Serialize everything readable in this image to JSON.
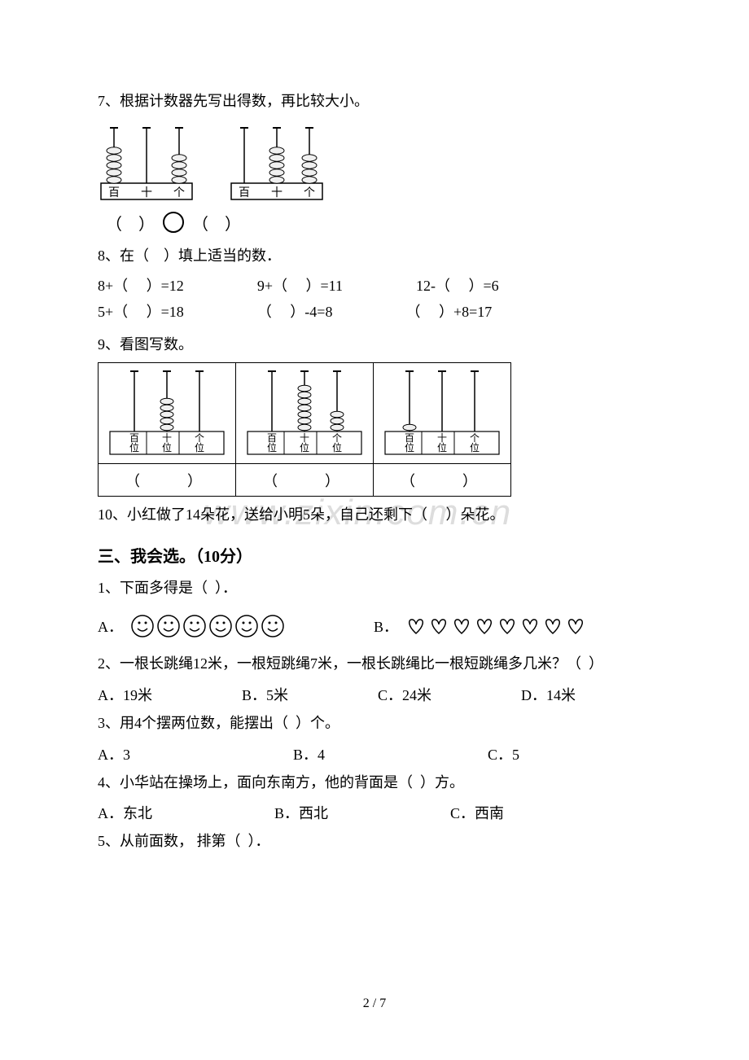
{
  "q7": {
    "text": "7、根据计数器先写出得数，再比较大小。",
    "abacus1": {
      "labels": [
        "百",
        "十",
        "个"
      ],
      "beads": [
        5,
        0,
        4
      ]
    },
    "abacus2": {
      "labels": [
        "百",
        "十",
        "个"
      ],
      "beads": [
        0,
        5,
        4
      ]
    },
    "paren": "（    ）",
    "paren2": "（    ）"
  },
  "q8": {
    "text": "8、在（    ）填上适当的数．",
    "eq1": "8+（     ）=12",
    "eq2": "9+（     ）=11",
    "eq3": "12-（     ）=6",
    "eq4": "5+（     ）=18",
    "eq5": "（     ）-4=8",
    "eq6": "（     ）+8=17"
  },
  "q9": {
    "text": "9、看图写数。",
    "col_labels": [
      "百位",
      "十位",
      "个位"
    ],
    "abacus": [
      {
        "beads": [
          0,
          5,
          0
        ]
      },
      {
        "beads": [
          0,
          7,
          3
        ]
      },
      {
        "beads": [
          1,
          0,
          0
        ]
      }
    ],
    "answer": "（    ）"
  },
  "q10": {
    "text": "10、小红做了14朵花，送给小明5朵，自己还剩下（     ）朵花。"
  },
  "section3": {
    "title": "三、我会选。（10分）"
  },
  "s3q1": {
    "text": "1、下面多得是（  ）．",
    "optA_label": "A．",
    "optA_count": 6,
    "optB_label": "B．",
    "optB_count": 8
  },
  "s3q2": {
    "text": "2、一根长跳绳12米，一根短跳绳7米，一根长跳绳比一根短跳绳多几米？（  ）",
    "optA": "A．19米",
    "optB": "B．5米",
    "optC": "C．24米",
    "optD": "D．14米"
  },
  "s3q3": {
    "text": "3、用4个摆两位数，能摆出（  ）个。",
    "optA": "A．3",
    "optB": "B．4",
    "optC": "C．5"
  },
  "s3q4": {
    "text": "4、小华站在操场上，面向东南方，他的背面是（  ）方。",
    "optA": "A．东北",
    "optB": "B．西北",
    "optC": "C．西南"
  },
  "s3q5": {
    "text": "5、从前面数， 排第（  ）．"
  },
  "watermark": "www.zixin.com.cn",
  "page_num": "2 / 7",
  "colors": {
    "text": "#000000",
    "bg": "#ffffff",
    "watermark": "#dddddd",
    "border": "#000000"
  }
}
